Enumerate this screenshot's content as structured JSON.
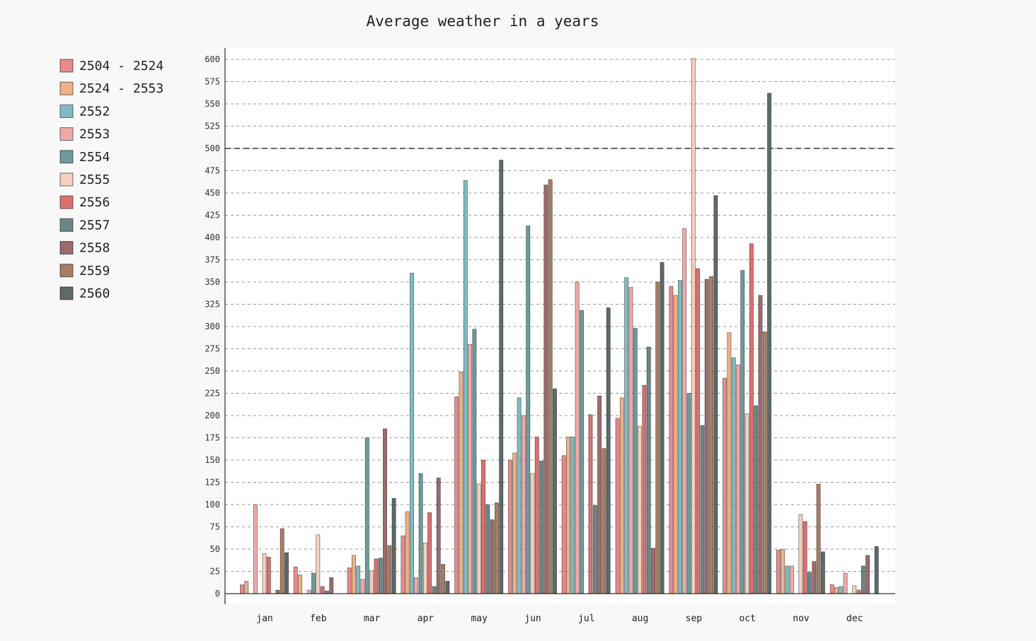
{
  "chart_data": {
    "type": "bar",
    "title": "Average weather in a years",
    "xlabel": "",
    "ylabel": "",
    "categories": [
      "jan",
      "feb",
      "mar",
      "apr",
      "may",
      "jun",
      "jul",
      "aug",
      "sep",
      "oct",
      "nov",
      "dec"
    ],
    "ylim": [
      0,
      600
    ],
    "yticks": [
      0,
      25,
      50,
      75,
      100,
      125,
      150,
      175,
      200,
      225,
      250,
      275,
      300,
      325,
      350,
      375,
      400,
      425,
      450,
      475,
      500,
      525,
      550,
      575,
      600
    ],
    "grid": true,
    "reference_line": 500,
    "legend_position": "left",
    "series": [
      {
        "name": "2504 - 2524",
        "color": "#e88a8a",
        "values": [
          10,
          30,
          29,
          65,
          221,
          150,
          155,
          197,
          345,
          242,
          49,
          10
        ]
      },
      {
        "name": "2524 - 2553",
        "color": "#efb088",
        "values": [
          14,
          21,
          43,
          92,
          249,
          158,
          176,
          220,
          335,
          293,
          50,
          7
        ]
      },
      {
        "name": "2552",
        "color": "#7fbcc0",
        "values": [
          0,
          0,
          31,
          360,
          464,
          220,
          176,
          355,
          352,
          265,
          31,
          8
        ]
      },
      {
        "name": "2553",
        "color": "#f0a9a9",
        "values": [
          100,
          4,
          16,
          18,
          280,
          200,
          350,
          344,
          410,
          257,
          31,
          23
        ]
      },
      {
        "name": "2554",
        "color": "#6f9a9c",
        "values": [
          0,
          23,
          175,
          135,
          297,
          413,
          318,
          298,
          225,
          363,
          0,
          0
        ]
      },
      {
        "name": "2555",
        "color": "#f5d0be",
        "values": [
          45,
          66,
          26,
          57,
          123,
          135,
          0,
          188,
          601,
          202,
          89,
          9
        ]
      },
      {
        "name": "2556",
        "color": "#dc7070",
        "values": [
          41,
          8,
          39,
          91,
          150,
          176,
          201,
          234,
          365,
          393,
          81,
          4
        ]
      },
      {
        "name": "2557",
        "color": "#6e8585",
        "values": [
          0,
          3,
          40,
          8,
          100,
          149,
          99,
          277,
          189,
          211,
          24,
          31
        ]
      },
      {
        "name": "2558",
        "color": "#9c6b6b",
        "values": [
          4,
          18,
          185,
          130,
          83,
          459,
          222,
          51,
          353,
          335,
          36,
          43
        ]
      },
      {
        "name": "2559",
        "color": "#a77e64",
        "values": [
          73,
          0,
          54,
          33,
          102,
          465,
          163,
          350,
          356,
          294,
          123,
          0
        ]
      },
      {
        "name": "2560",
        "color": "#5d6a69",
        "values": [
          46,
          0,
          107,
          14,
          487,
          230,
          321,
          372,
          447,
          562,
          47,
          53
        ]
      }
    ]
  }
}
